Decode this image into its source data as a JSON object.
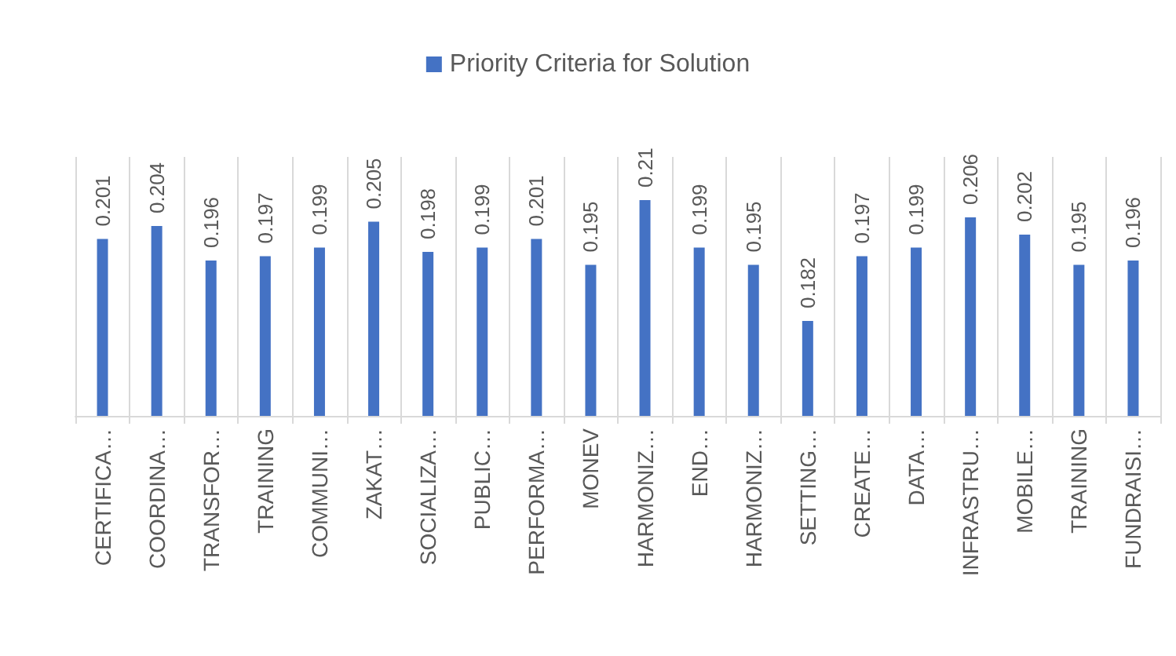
{
  "chart_data": {
    "type": "bar",
    "categories": [
      "CERTIFICA…",
      "COORDINA…",
      "TRANSFOR…",
      "TRAINING",
      "COMMUNI…",
      "ZAKAT…",
      "SOCIALIZA…",
      "PUBLIC…",
      "PERFORMA…",
      "MONEV",
      "HARMONIZ…",
      "END…",
      "HARMONIZ…",
      "SETTING…",
      "CREATE…",
      "DATA…",
      "INFRASTRU…",
      "MOBILE…",
      "TRAINING",
      "FUNDRAISI…"
    ],
    "series": [
      {
        "name": "Priority Criteria for Solution",
        "color": "#4472c4",
        "values": [
          0.201,
          0.204,
          0.196,
          0.197,
          0.199,
          0.205,
          0.198,
          0.199,
          0.201,
          0.195,
          0.21,
          0.199,
          0.195,
          0.182,
          0.197,
          0.199,
          0.206,
          0.202,
          0.195,
          0.196
        ]
      }
    ],
    "ylim": [
      0.16,
      0.22
    ],
    "data_labels": true,
    "grid": "x",
    "legend": "top",
    "tick_labels": "x"
  }
}
